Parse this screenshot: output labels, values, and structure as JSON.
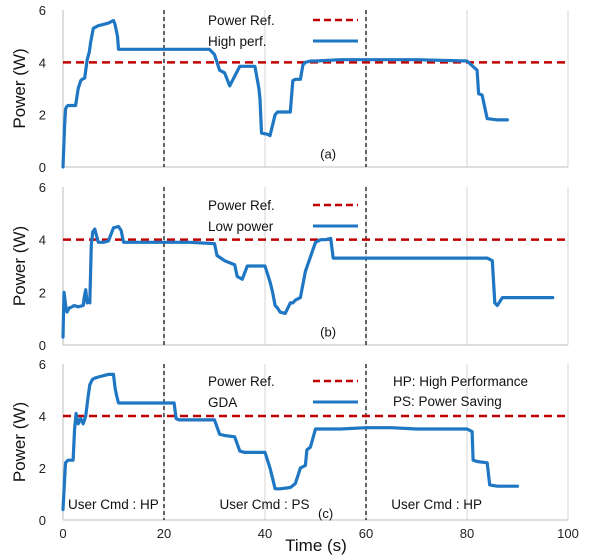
{
  "chart_data": [
    {
      "type": "line",
      "panel_label": "(a)",
      "ylabel": "Power (W)",
      "xlabel": "",
      "ylim": [
        0,
        6
      ],
      "xlim": [
        0,
        100
      ],
      "y_ticks": [
        "0",
        "2",
        "4",
        "6"
      ],
      "x_ticks": [],
      "grid": "vertical",
      "legend": "top-center",
      "marker_lines": [
        20,
        60
      ],
      "reference": {
        "name": "Power Ref.",
        "value": 4.0,
        "color": "#c00000",
        "style": "dashed"
      },
      "series": [
        {
          "name": "High perf.",
          "color": "#1f77c4",
          "x": [
            0,
            0.3,
            0.5,
            0.7,
            1,
            1.5,
            2.5,
            3,
            3.5,
            3.8,
            4.3,
            4.8,
            5.2,
            5.5,
            6,
            7,
            8,
            9,
            10,
            10.3,
            10.8,
            11,
            12,
            20,
            22,
            29,
            30,
            31,
            32,
            33,
            35,
            38,
            38.8,
            39,
            39.3,
            40.5,
            41,
            42,
            42.5,
            44,
            45,
            45.5,
            46,
            47,
            47.5,
            48,
            49,
            50,
            55,
            60,
            70,
            80,
            82,
            82.3,
            83,
            84,
            86,
            88
          ],
          "y": [
            0,
            1.5,
            2.2,
            2.3,
            2.35,
            2.35,
            2.35,
            3.0,
            3.3,
            3.35,
            3.4,
            4.1,
            4.4,
            4.8,
            5.3,
            5.4,
            5.45,
            5.5,
            5.6,
            5.45,
            5.0,
            4.5,
            4.5,
            4.5,
            4.5,
            4.5,
            4.3,
            3.7,
            3.6,
            3.1,
            3.85,
            3.85,
            3.0,
            2.6,
            1.3,
            1.25,
            1.2,
            2.0,
            2.1,
            2.1,
            2.1,
            3.3,
            3.35,
            3.35,
            3.9,
            4.0,
            4.05,
            4.05,
            4.1,
            4.1,
            4.1,
            4.05,
            3.7,
            2.8,
            2.75,
            1.85,
            1.8,
            1.8
          ]
        }
      ]
    },
    {
      "type": "line",
      "panel_label": "(b)",
      "ylabel": "Power (W)",
      "xlabel": "",
      "ylim": [
        0,
        6
      ],
      "xlim": [
        0,
        100
      ],
      "y_ticks": [
        "0",
        "2",
        "4",
        "6"
      ],
      "x_ticks": [],
      "grid": "vertical",
      "legend": "top-left",
      "marker_lines": [
        20,
        60
      ],
      "reference": {
        "name": "Power Ref.",
        "value": 4.0,
        "color": "#c00000",
        "style": "dashed"
      },
      "series": [
        {
          "name": "Low power",
          "color": "#1f77c4",
          "x": [
            0,
            0.2,
            0.4,
            0.6,
            0.8,
            1.2,
            1.8,
            2.2,
            3,
            4,
            4.2,
            4.5,
            4.8,
            5,
            5.3,
            5.6,
            5.9,
            6.3,
            7,
            8,
            9,
            10,
            11,
            11.5,
            12,
            15,
            20,
            25,
            30,
            30.5,
            32,
            34,
            34.5,
            35.5,
            36.5,
            37,
            40,
            41,
            41.5,
            42,
            42.5,
            43,
            44,
            45,
            45.5,
            46,
            47,
            48,
            50,
            51,
            52,
            53,
            53.5,
            55,
            60,
            70,
            80,
            84,
            85,
            85.5,
            86,
            87,
            90,
            95,
            97
          ],
          "y": [
            0.3,
            2.0,
            1.7,
            1.4,
            1.25,
            1.4,
            1.45,
            1.5,
            1.45,
            1.5,
            1.8,
            2.1,
            1.6,
            1.7,
            1.6,
            3.8,
            4.3,
            4.4,
            3.9,
            3.9,
            3.95,
            4.45,
            4.5,
            4.35,
            3.9,
            3.9,
            3.9,
            3.9,
            3.85,
            3.4,
            3.2,
            3.05,
            2.6,
            2.5,
            3.0,
            3.0,
            3.0,
            2.4,
            2.0,
            1.5,
            1.4,
            1.25,
            1.2,
            1.6,
            1.6,
            1.7,
            1.8,
            2.8,
            3.9,
            4.0,
            4.0,
            4.05,
            3.3,
            3.3,
            3.3,
            3.3,
            3.3,
            3.3,
            3.2,
            1.6,
            1.5,
            1.8,
            1.8,
            1.8,
            1.8
          ]
        }
      ]
    },
    {
      "type": "line",
      "panel_label": "(c)",
      "ylabel": "Power (W)",
      "xlabel": "Time (s)",
      "ylim": [
        0,
        6
      ],
      "xlim": [
        0,
        100
      ],
      "y_ticks": [
        "0",
        "2",
        "4",
        "6"
      ],
      "x_ticks": [
        "0",
        "20",
        "40",
        "60",
        "80",
        "100"
      ],
      "grid": "vertical",
      "legend": "top-left",
      "marker_lines": [
        20,
        60
      ],
      "reference": {
        "name": "Power Ref.",
        "value": 4.0,
        "color": "#c00000",
        "style": "dashed"
      },
      "notes": [
        "HP: High Performance",
        "PS: Power Saving"
      ],
      "region_labels": [
        {
          "text": "User Cmd : HP",
          "x": 1
        },
        {
          "text": "User Cmd : PS",
          "x": 31
        },
        {
          "text": "User Cmd : HP",
          "x": 65
        }
      ],
      "series": [
        {
          "name": "GDA",
          "color": "#1f77c4",
          "x": [
            0,
            0.3,
            0.5,
            1,
            2,
            2.3,
            2.6,
            3,
            3.5,
            4,
            4.5,
            5,
            5.3,
            5.8,
            6.2,
            7,
            8,
            9,
            10,
            10.3,
            10.6,
            11,
            15,
            20,
            21,
            22,
            22.4,
            23,
            25,
            30,
            31,
            32,
            34,
            35,
            36,
            37,
            38,
            40,
            41,
            41.5,
            42,
            43,
            45,
            46,
            47,
            48,
            48.3,
            49,
            50,
            53,
            55,
            60,
            65,
            70,
            80,
            81,
            81.2,
            82,
            84,
            84.5,
            86,
            88,
            90
          ],
          "y": [
            0.4,
            1.5,
            2.2,
            2.3,
            2.3,
            3.5,
            4.1,
            3.7,
            3.9,
            3.7,
            4.0,
            4.8,
            5.2,
            5.4,
            5.45,
            5.5,
            5.55,
            5.6,
            5.6,
            5.1,
            4.8,
            4.5,
            4.5,
            4.5,
            4.5,
            4.5,
            3.9,
            3.85,
            3.85,
            3.85,
            3.3,
            3.25,
            3.2,
            2.65,
            2.6,
            2.6,
            2.6,
            2.6,
            2.0,
            1.6,
            1.2,
            1.2,
            1.25,
            1.4,
            2.0,
            2.1,
            2.7,
            2.8,
            3.5,
            3.5,
            3.5,
            3.55,
            3.55,
            3.5,
            3.5,
            3.4,
            2.3,
            2.25,
            2.2,
            1.35,
            1.3,
            1.3,
            1.3
          ]
        }
      ]
    }
  ]
}
